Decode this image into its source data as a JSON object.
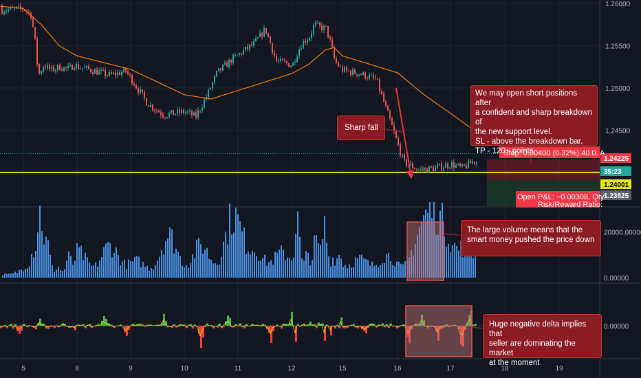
{
  "chart_data": {
    "type": "candlestick",
    "price_axis": {
      "ticks": [
        "1.26000",
        "1.25500",
        "1.25000",
        "1.24500"
      ],
      "range": [
        1.2365,
        1.2602
      ]
    },
    "price_series": [
      {
        "day": 4.0,
        "price": 1.2596
      },
      {
        "day": 4.5,
        "price": 1.2592
      },
      {
        "day": 5.0,
        "price": 1.2594
      },
      {
        "day": 5.4,
        "price": 1.2586
      },
      {
        "day": 5.6,
        "price": 1.2558
      },
      {
        "day": 5.8,
        "price": 1.2515
      },
      {
        "day": 6.1,
        "price": 1.2527
      },
      {
        "day": 6.5,
        "price": 1.2521
      },
      {
        "day": 7.0,
        "price": 1.2525
      },
      {
        "day": 7.5,
        "price": 1.2522
      },
      {
        "day": 7.8,
        "price": 1.2528
      },
      {
        "day": 8.2,
        "price": 1.2522
      },
      {
        "day": 8.6,
        "price": 1.2515
      },
      {
        "day": 8.9,
        "price": 1.252
      },
      {
        "day": 9.3,
        "price": 1.2482
      },
      {
        "day": 9.6,
        "price": 1.2468
      },
      {
        "day": 10.0,
        "price": 1.2472
      },
      {
        "day": 10.2,
        "price": 1.2466
      },
      {
        "day": 10.4,
        "price": 1.249
      },
      {
        "day": 10.6,
        "price": 1.2518
      },
      {
        "day": 10.9,
        "price": 1.2535
      },
      {
        "day": 11.3,
        "price": 1.2553
      },
      {
        "day": 11.5,
        "price": 1.257
      },
      {
        "day": 11.7,
        "price": 1.2532
      },
      {
        "day": 12.0,
        "price": 1.2527
      },
      {
        "day": 12.3,
        "price": 1.2542
      },
      {
        "day": 12.6,
        "price": 1.2554
      },
      {
        "day": 13.0,
        "price": 1.256
      },
      {
        "day": 13.3,
        "price": 1.2575
      },
      {
        "day": 13.6,
        "price": 1.2572
      },
      {
        "day": 14.0,
        "price": 1.257
      },
      {
        "day": 14.3,
        "price": 1.255
      },
      {
        "day": 14.5,
        "price": 1.2532
      },
      {
        "day": 14.9,
        "price": 1.2522
      },
      {
        "day": 15.3,
        "price": 1.2517
      },
      {
        "day": 15.6,
        "price": 1.251
      },
      {
        "day": 15.9,
        "price": 1.2452
      },
      {
        "day": 16.1,
        "price": 1.2412
      },
      {
        "day": 16.4,
        "price": 1.2403
      },
      {
        "day": 16.7,
        "price": 1.2405
      },
      {
        "day": 17.0,
        "price": 1.241
      },
      {
        "day": 17.2,
        "price": 1.2405
      },
      {
        "day": 17.4,
        "price": 1.2413
      }
    ],
    "moving_average": [
      {
        "day": 4.0,
        "price": 1.26
      },
      {
        "day": 5.0,
        "price": 1.2594
      },
      {
        "day": 6.0,
        "price": 1.2575
      },
      {
        "day": 7.0,
        "price": 1.255
      },
      {
        "day": 8.0,
        "price": 1.2538
      },
      {
        "day": 9.0,
        "price": 1.2522
      },
      {
        "day": 10.0,
        "price": 1.2492
      },
      {
        "day": 10.5,
        "price": 1.2487
      },
      {
        "day": 11.0,
        "price": 1.2497
      },
      {
        "day": 12.0,
        "price": 1.2517
      },
      {
        "day": 13.0,
        "price": 1.2528
      },
      {
        "day": 14.0,
        "price": 1.2545
      },
      {
        "day": 14.5,
        "price": 1.2548
      },
      {
        "day": 15.0,
        "price": 1.2538
      },
      {
        "day": 16.0,
        "price": 1.2518
      },
      {
        "day": 16.5,
        "price": 1.2492
      },
      {
        "day": 17.0,
        "price": 1.247
      },
      {
        "day": 17.6,
        "price": 1.2442
      }
    ],
    "level_lines": [
      {
        "price": 1.24225,
        "color": "#26a69a",
        "style": "dotted"
      },
      {
        "price": 1.24001,
        "color": "#e8e800",
        "style": "solid"
      }
    ],
    "price_labels": [
      {
        "text": "1.24225",
        "price": 1.24225,
        "bg": "#f23645",
        "fg": "#ffffff"
      },
      {
        "text": "35:23",
        "price": 1.2412,
        "bg": "#26a69a",
        "fg": "#ffffff"
      },
      {
        "text": "1.24001",
        "price": 1.24001,
        "bg": "#e8e800",
        "fg": "#000000"
      },
      {
        "text": "1.23825",
        "price": 1.23825,
        "bg": "#5d606b",
        "fg": "#ffffff"
      }
    ],
    "volume_axis": {
      "ticks": [
        "20000.00000",
        "0.00000"
      ],
      "values": [
        20000,
        0
      ],
      "max": 33000
    },
    "volume_clusters": [
      {
        "day": 4.2,
        "peak": 6000
      },
      {
        "day": 5.1,
        "peak": 4500
      },
      {
        "day": 5.5,
        "peak": 11000
      },
      {
        "day": 5.9,
        "peak": 31000
      },
      {
        "day": 6.3,
        "peak": 15000
      },
      {
        "day": 6.9,
        "peak": 4000
      },
      {
        "day": 7.5,
        "peak": 9000
      },
      {
        "day": 8.0,
        "peak": 12000
      },
      {
        "day": 8.6,
        "peak": 15000
      },
      {
        "day": 9.1,
        "peak": 7000
      },
      {
        "day": 9.7,
        "peak": 20000
      },
      {
        "day": 10.3,
        "peak": 15000
      },
      {
        "day": 10.9,
        "peak": 30000
      },
      {
        "day": 11.3,
        "peak": 12000
      },
      {
        "day": 11.8,
        "peak": 11000
      },
      {
        "day": 12.3,
        "peak": 27000
      },
      {
        "day": 12.9,
        "peak": 11000
      },
      {
        "day": 13.4,
        "peak": 18000
      },
      {
        "day": 13.9,
        "peak": 25000
      },
      {
        "day": 14.4,
        "peak": 8000
      },
      {
        "day": 14.8,
        "peak": 10000
      },
      {
        "day": 15.3,
        "peak": 8000
      },
      {
        "day": 15.8,
        "peak": 10000
      },
      {
        "day": 16.4,
        "peak": 17000
      },
      {
        "day": 16.65,
        "peak": 24000
      },
      {
        "day": 16.9,
        "peak": 16000
      },
      {
        "day": 17.3,
        "peak": 14000
      }
    ],
    "delta_axis": {
      "ticks": [
        "0.00000"
      ],
      "values": [
        0
      ]
    },
    "delta_spikes": [
      {
        "day": 4.9,
        "v": -10
      },
      {
        "day": 5.6,
        "v": -22
      },
      {
        "day": 5.85,
        "v": 14
      },
      {
        "day": 6.4,
        "v": -12
      },
      {
        "day": 7.2,
        "v": 10
      },
      {
        "day": 7.9,
        "v": -14
      },
      {
        "day": 8.5,
        "v": 16
      },
      {
        "day": 8.9,
        "v": -10
      },
      {
        "day": 9.6,
        "v": 12
      },
      {
        "day": 10.3,
        "v": -24
      },
      {
        "day": 10.8,
        "v": 14
      },
      {
        "day": 11.6,
        "v": -18
      },
      {
        "day": 12.0,
        "v": 18
      },
      {
        "day": 12.2,
        "v": -20
      },
      {
        "day": 13.1,
        "v": 12
      },
      {
        "day": 13.6,
        "v": 34
      },
      {
        "day": 13.9,
        "v": -16
      },
      {
        "day": 14.3,
        "v": -20
      },
      {
        "day": 14.9,
        "v": 14
      },
      {
        "day": 15.4,
        "v": -12
      },
      {
        "day": 16.2,
        "v": -22
      },
      {
        "day": 16.45,
        "v": 14
      },
      {
        "day": 16.75,
        "v": -18
      },
      {
        "day": 17.2,
        "v": -28
      },
      {
        "day": 17.35,
        "v": 20
      }
    ],
    "x_axis": {
      "ticks": [
        "5",
        "8",
        "9",
        "10",
        "11",
        "12",
        "15",
        "16",
        "17",
        "18",
        "19"
      ],
      "values": [
        5,
        8,
        9,
        10,
        11,
        12,
        15,
        16,
        17,
        18,
        19
      ]
    },
    "colors": {
      "up": "#26a69a",
      "down": "#ef5350",
      "ma": "#f57c00",
      "volume": "#4a90e2",
      "delta_up": "#4caf50",
      "delta_down": "#f44336",
      "delta_line": "#e8e800",
      "highlight": "#c87878",
      "stop_zone": "#8b1c24",
      "profit_zone": "#1b3d2a"
    }
  },
  "annotations": {
    "short_idea": {
      "lines": [
        "We may open short positions after",
        "a confident and sharp breakdown of",
        "the new support level.",
        "SL - above the breakdown bar.",
        "TP - 120+ points."
      ]
    },
    "sharp_fall": {
      "text": "Sharp fall"
    },
    "volume_note": {
      "lines": [
        "The large volume means that the",
        "smart money pushed the price down"
      ]
    },
    "delta_note": {
      "lines": [
        "Huge negative delta implies that",
        "seller are dominating the market",
        "at the moment"
      ]
    }
  },
  "trade_box": {
    "stop_label": "Stop: 0.00400 (0.32%) 40.0, A",
    "pnl_label": "Open P&L: −0.00308, Qty:",
    "rr_label": "Risk/Reward Ratio:"
  }
}
